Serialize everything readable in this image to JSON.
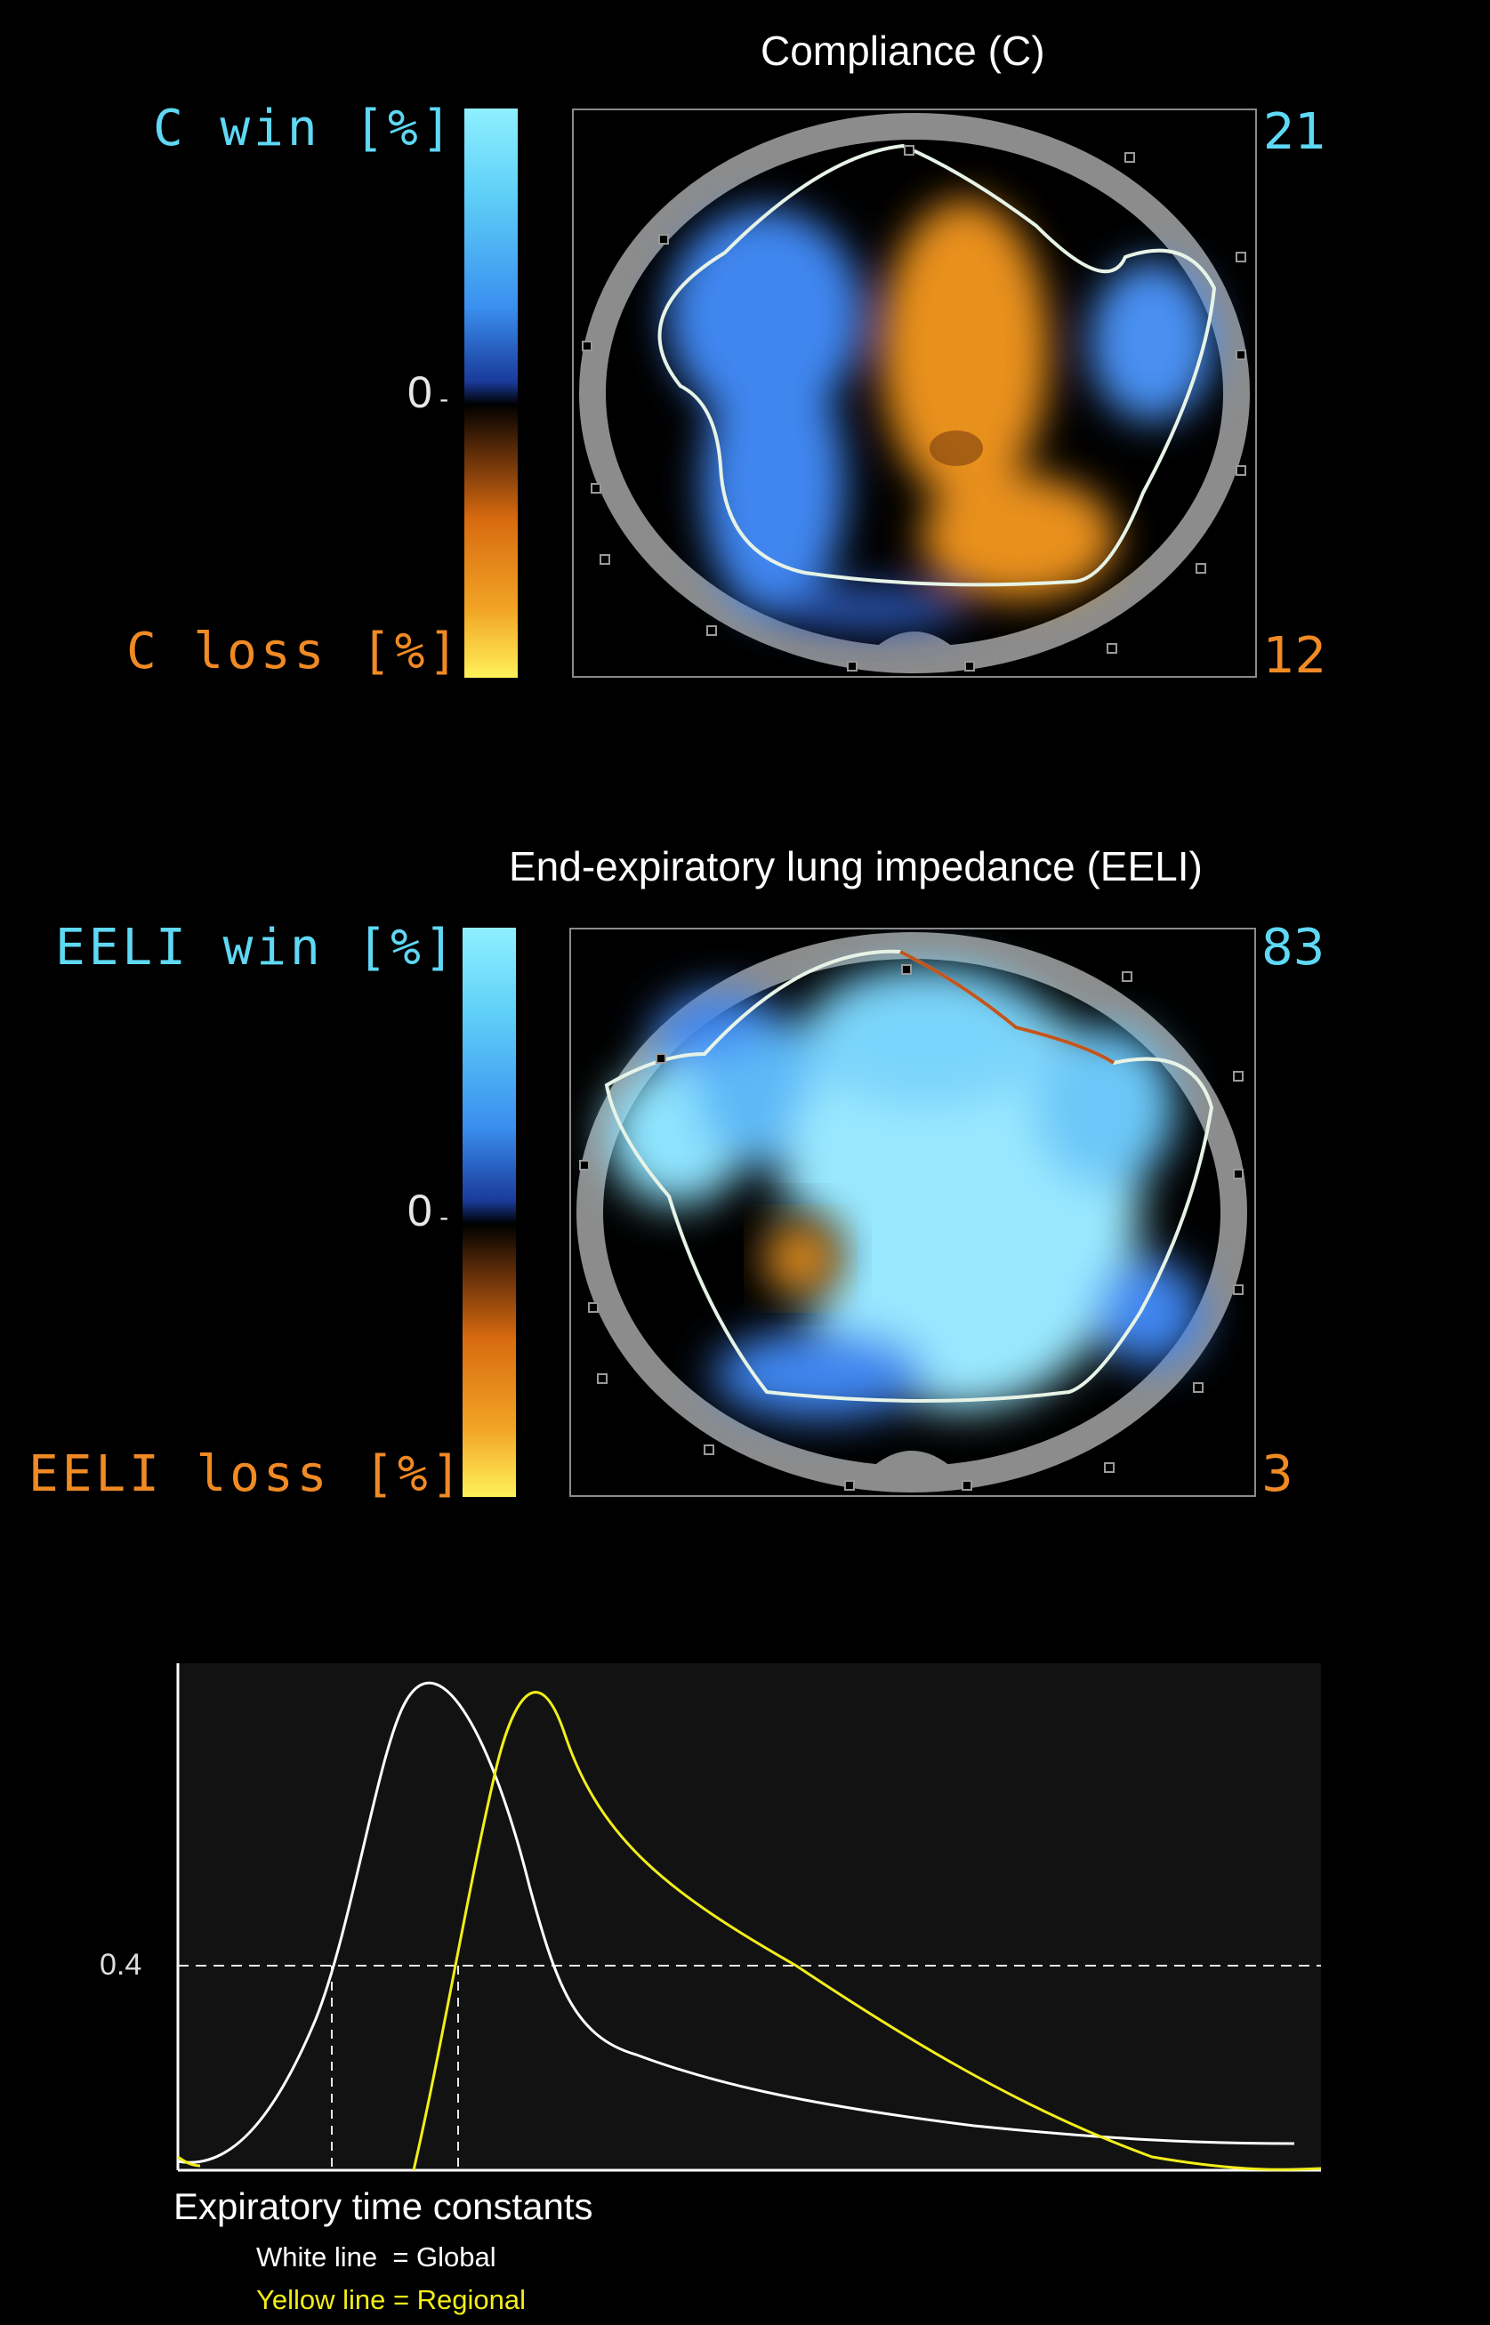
{
  "compliance": {
    "title": "Compliance (C)",
    "win_label": "C win [%]",
    "loss_label": "C loss [%]",
    "zero": "0",
    "max_value": "21",
    "min_value": "12"
  },
  "eeli": {
    "title": "End-expiratory lung impedance (EELI)",
    "win_label": "EELI win [%]",
    "loss_label": "EELI loss [%]",
    "zero": "0",
    "max_value": "83",
    "min_value": "3"
  },
  "colors": {
    "win": "#5fd8f4",
    "loss": "#f08a24",
    "global_line": "#ffffff",
    "regional_line": "#f2ee1a"
  },
  "chart_data": {
    "type": "line",
    "ytick": "0.4",
    "caption": "Expiratory time constants",
    "legend": [
      "White line  = Global",
      "Yellow line = Regional"
    ],
    "series": [
      {
        "color": "white"
      },
      {
        "color": "yellow"
      }
    ]
  }
}
